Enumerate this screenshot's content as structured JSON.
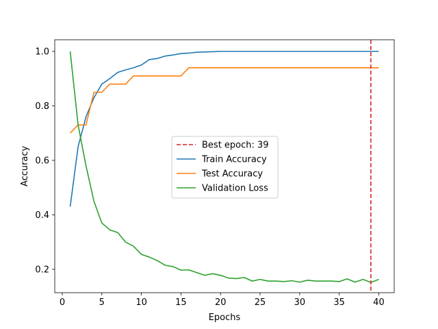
{
  "chart_data": {
    "type": "line",
    "xlabel": "Epochs",
    "ylabel": "Accuracy",
    "xlim": [
      -0.95,
      41.95
    ],
    "ylim": [
      0.1143,
      1.0428
    ],
    "x_ticks": [
      0,
      5,
      10,
      15,
      20,
      25,
      30,
      35,
      40
    ],
    "y_ticks": [
      0.2,
      0.4,
      0.6,
      0.8,
      1.0
    ],
    "grid": false,
    "legend_position": "center",
    "best_epoch": {
      "label": "Best epoch: 39",
      "x": 39,
      "color": "#d62728"
    },
    "x": [
      1,
      2,
      3,
      4,
      5,
      6,
      7,
      8,
      9,
      10,
      11,
      12,
      13,
      14,
      15,
      16,
      17,
      18,
      19,
      20,
      21,
      22,
      23,
      24,
      25,
      26,
      27,
      28,
      29,
      30,
      31,
      32,
      33,
      34,
      35,
      36,
      37,
      38,
      39,
      40
    ],
    "series": [
      {
        "name": "Train Accuracy",
        "color": "#1f77b4",
        "values": [
          0.43,
          0.65,
          0.76,
          0.83,
          0.88,
          0.9,
          0.923,
          0.932,
          0.94,
          0.95,
          0.97,
          0.974,
          0.983,
          0.987,
          0.992,
          0.994,
          0.997,
          0.998,
          0.999,
          1.0,
          1.0,
          1.0,
          1.0,
          1.0,
          1.0,
          1.0,
          1.0,
          1.0,
          1.0,
          1.0,
          1.0,
          1.0,
          1.0,
          1.0,
          1.0,
          1.0,
          1.0,
          1.0,
          1.0,
          1.0
        ]
      },
      {
        "name": "Test Accuracy",
        "color": "#ff7f0e",
        "values": [
          0.7,
          0.73,
          0.73,
          0.85,
          0.85,
          0.88,
          0.88,
          0.88,
          0.91,
          0.91,
          0.91,
          0.91,
          0.91,
          0.91,
          0.91,
          0.94,
          0.94,
          0.94,
          0.94,
          0.94,
          0.94,
          0.94,
          0.94,
          0.94,
          0.94,
          0.94,
          0.94,
          0.94,
          0.94,
          0.94,
          0.94,
          0.94,
          0.94,
          0.94,
          0.94,
          0.94,
          0.94,
          0.94,
          0.94,
          0.94
        ]
      },
      {
        "name": "Validation Loss",
        "color": "#2ca02c",
        "values": [
          1.0,
          0.73,
          0.58,
          0.45,
          0.37,
          0.345,
          0.335,
          0.3,
          0.285,
          0.255,
          0.245,
          0.232,
          0.215,
          0.21,
          0.197,
          0.198,
          0.188,
          0.178,
          0.184,
          0.178,
          0.168,
          0.166,
          0.17,
          0.157,
          0.163,
          0.157,
          0.157,
          0.155,
          0.158,
          0.153,
          0.16,
          0.157,
          0.157,
          0.157,
          0.155,
          0.165,
          0.153,
          0.163,
          0.152,
          0.163
        ]
      }
    ]
  }
}
